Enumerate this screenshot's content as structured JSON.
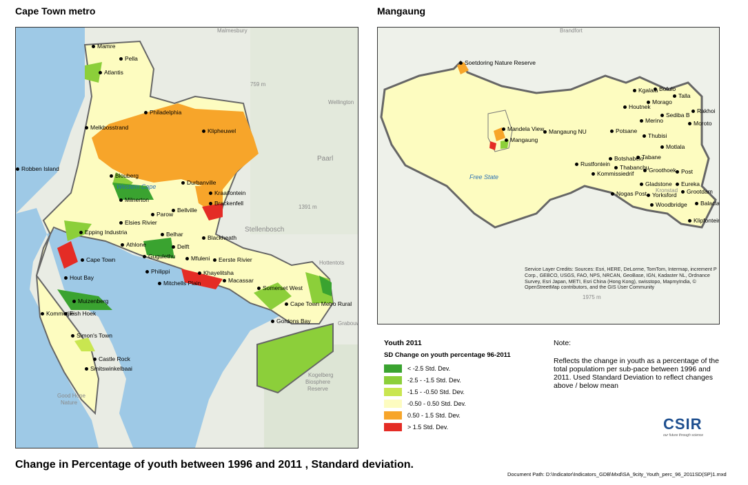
{
  "maps": {
    "cape_town": {
      "title": "Cape Town metro",
      "places": [
        "Mamre",
        "Pella",
        "Atlantis",
        "Philadelphia",
        "Melkbosstrand",
        "Klipheuwel",
        "Robben Island",
        "Blouberg",
        "Durbanville",
        "Kraaifontein",
        "Milnerton",
        "Brackenfell",
        "Parow",
        "Bellville",
        "Elsies Rivier",
        "Epping Industria",
        "Belhar",
        "Blackheath",
        "Athlone",
        "Delft",
        "Cape Town",
        "Gugulethu",
        "Mfuleni",
        "Eerste Rivier",
        "Philippi",
        "Khayelitsha",
        "Hout Bay",
        "Mitchells Plain",
        "Macassar",
        "Somerset West",
        "Muizenberg",
        "Cape Town Metro Rural",
        "Kommetjie",
        "Fish Hoek",
        "Gordons Bay",
        "Simon's Town",
        "Castle Rock",
        "Smitswinkelbaai"
      ],
      "basemap_labels": [
        "Malmesbury",
        "Wellington",
        "Paarl",
        "Stellenbosch",
        "Hottentots",
        "Grabouw",
        "Kogelberg",
        "Biosphere",
        "Reserve",
        "759 m",
        "1391 m",
        "Good Hope",
        "Nature"
      ],
      "water_label": "Western Cape"
    },
    "mangaung": {
      "title": "Mangaung",
      "places": [
        "Soetdoring Nature Reserve",
        "Kgalala",
        "Bofulo",
        "Talla",
        "Houtnek",
        "Morago",
        "Sediba B",
        "Rakhoi",
        "Merino",
        "Moroto",
        "Potsane",
        "Mandela View",
        "Mangaung NU",
        "Thubisi",
        "Mangaung",
        "Motlala",
        "Thabanchu",
        "Tabane",
        "Botshabelo",
        "Rustfontein",
        "Groothoek",
        "Post",
        "Kommissiedrif",
        "Gladstone",
        "Eureka",
        "Nogas Post",
        "Grootdam",
        "Yorksford",
        "Woodbridge",
        "Balaclava",
        "Klipfontein"
      ],
      "region_label": "Free State",
      "basemap_labels": [
        "Brandfort",
        "Kronstad",
        "1975 m"
      ],
      "credits": "Service Layer Credits: Sources: Esri, HERE, DeLorme, TomTom, Intermap, increment P Corp., GEBCO, USGS, FAO, NPS, NRCAN, GeoBase, IGN, Kadaster NL, Ordnance Survey, Esri Japan, METI, Esri China (Hong Kong), swisstopo, MapmyIndia, © OpenStreetMap contributors, and the GIS User Community"
    }
  },
  "legend": {
    "title": "Youth 2011",
    "subtitle": "SD Change on youth percentage 96-2011",
    "classes": [
      {
        "label": "< -2.5 Std. Dev.",
        "color": "#3aa330"
      },
      {
        "label": "-2.5 - -1.5 Std. Dev.",
        "color": "#8ccf3a"
      },
      {
        "label": "-1.5 - -0.50 Std. Dev.",
        "color": "#c9e650"
      },
      {
        "label": "-0.50 - 0.50 Std. Dev.",
        "color": "#fdfcc0"
      },
      {
        "label": "0.50 - 1.5 Std. Dev.",
        "color": "#f7a52a"
      },
      {
        "label": "> 1.5 Std. Dev.",
        "color": "#e42c25"
      }
    ]
  },
  "note": {
    "heading": "Note:",
    "text": "Reflects the change in youth as a percentage of the total populatiom per sub-pace between 1996 and 2011. Used Standard Deviation to reflect changes above / below mean"
  },
  "main_title": "Change in Percentage of youth between 1996 and 2011 , Standard deviation.",
  "doc_path": "Document Path: D:\\Indicator\\Indicators_GDB\\Mxd\\SA_9city_Youth_perc_96_2011SD(SP)1.mxd",
  "logo": {
    "text": "CSIR",
    "tagline": "our future through science"
  }
}
